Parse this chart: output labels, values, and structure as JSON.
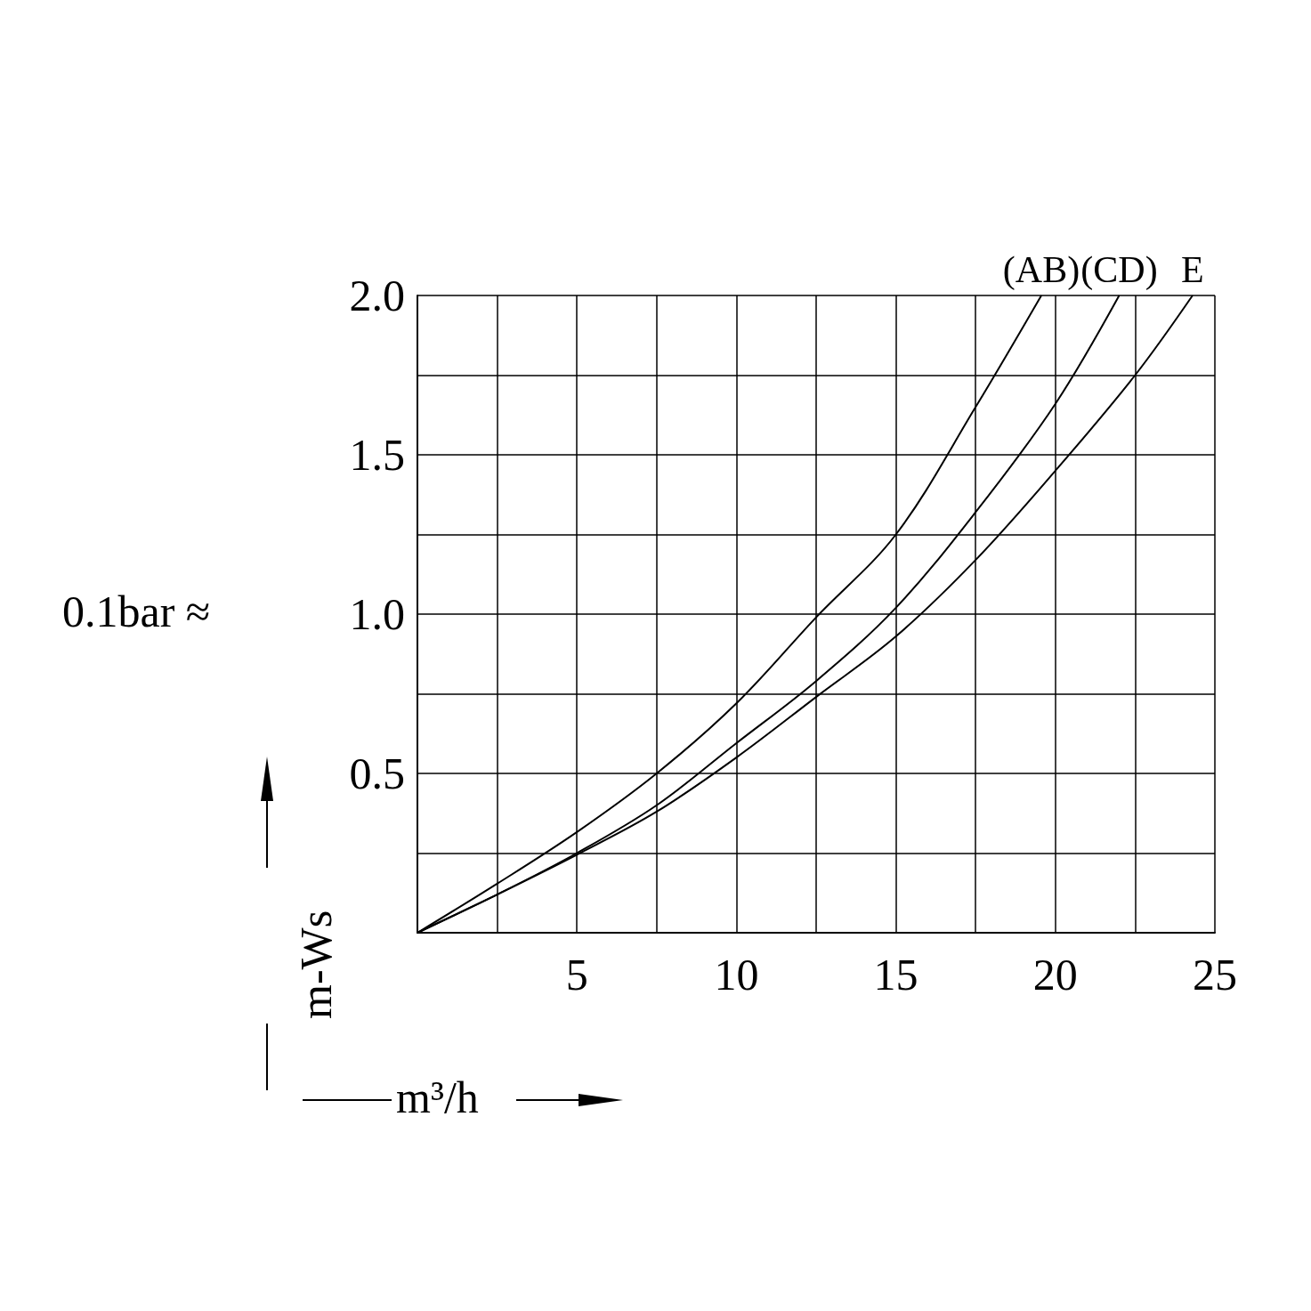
{
  "chart_data": {
    "type": "line",
    "xlabel": "m³/h",
    "ylabel": "m-Ws",
    "annotations": [
      "0.1bar ≈"
    ],
    "xlim": [
      0,
      25
    ],
    "ylim": [
      0,
      2
    ],
    "xticks": [
      {
        "value": 0,
        "label": null
      },
      {
        "value": 2.5,
        "label": null
      },
      5,
      {
        "value": 7.5,
        "label": null
      },
      10,
      {
        "value": 12.5,
        "label": null
      },
      15,
      {
        "value": 17.5,
        "label": null
      },
      20,
      {
        "value": 22.5,
        "label": null
      },
      25
    ],
    "yticks": [
      {
        "value": 0,
        "label": null
      },
      {
        "value": 0.25,
        "label": null
      },
      {
        "value": 0.5,
        "label": "0.5"
      },
      {
        "value": 0.75,
        "label": null
      },
      {
        "value": 1,
        "label": "1.0"
      },
      {
        "value": 1.25,
        "label": null
      },
      {
        "value": 1.5,
        "label": "1.5"
      },
      {
        "value": 1.75,
        "label": null
      },
      {
        "value": 2,
        "label": "2.0"
      }
    ],
    "grid": true,
    "marker": "none",
    "line_style": "solid",
    "series": [
      {
        "name": "(AB)",
        "color": "#000000",
        "x": [
          0,
          2.5,
          5,
          7.5,
          10,
          12.5,
          15,
          17.5,
          19.56
        ],
        "values": [
          0,
          0.154,
          0.316,
          0.5,
          0.72,
          0.99,
          1.25,
          1.65,
          2.0
        ]
      },
      {
        "name": "(CD)",
        "color": "#000000",
        "x": [
          0,
          2.5,
          5,
          7.5,
          10,
          12.5,
          15,
          17.5,
          20,
          22
        ],
        "values": [
          0,
          0.12,
          0.25,
          0.4,
          0.595,
          0.79,
          1.02,
          1.32,
          1.66,
          2.0
        ]
      },
      {
        "name": "E",
        "color": "#000000",
        "x": [
          0,
          2.5,
          5,
          7.5,
          10,
          12.5,
          15,
          17.5,
          20,
          22.5,
          24.3
        ],
        "values": [
          0,
          0.12,
          0.245,
          0.38,
          0.55,
          0.74,
          0.93,
          1.17,
          1.45,
          1.75,
          2.0
        ]
      }
    ]
  }
}
